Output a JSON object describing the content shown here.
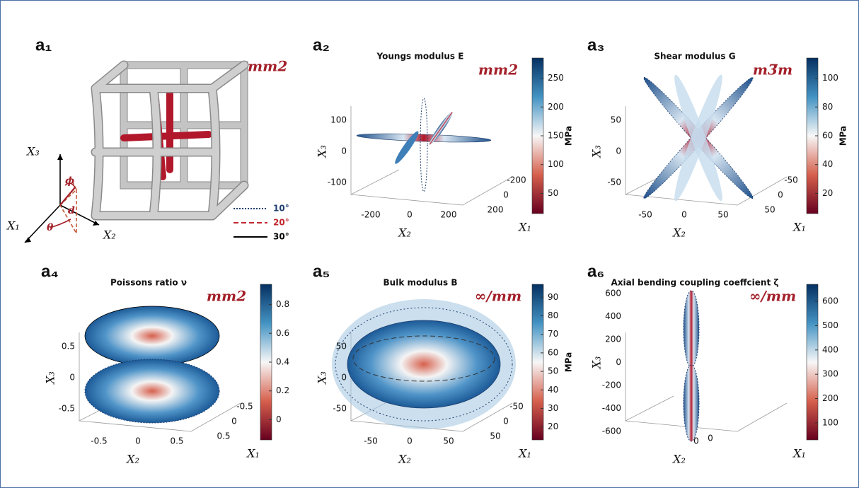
{
  "panels": [
    {
      "label": "a₁",
      "symmetry": "mm2",
      "axes": {
        "x3": "X₃",
        "x1": "X₁",
        "x2": "X₂",
        "phi": "ϕ",
        "d": "d",
        "theta": "θ"
      },
      "legend": [
        {
          "label": "10°",
          "color": "#1f3f6e",
          "style": "dotted"
        },
        {
          "label": "20°",
          "color": "#c0272d",
          "style": "dashed"
        },
        {
          "label": "30°",
          "color": "#000000",
          "style": "solid"
        }
      ]
    },
    {
      "label": "a₂",
      "title": "Youngs modulus E",
      "symmetry": "mm2",
      "colorbar": {
        "ticks": [
          50,
          100,
          150,
          200,
          250
        ],
        "unit": "MPa"
      },
      "x3_ticks": [
        100,
        0,
        -100
      ],
      "x2_ticks": [
        -200,
        0,
        200
      ],
      "x1_ticks": [
        -200,
        0,
        200
      ],
      "x3_label": "X₃",
      "x2_label": "X₂",
      "x1_label": "X₁"
    },
    {
      "label": "a₃",
      "title": "Shear modulus G",
      "symmetry": "m3̅m",
      "colorbar": {
        "ticks": [
          20,
          40,
          60,
          80,
          100
        ],
        "unit": "MPa"
      },
      "x3_ticks": [
        50,
        0,
        -50
      ],
      "x2_ticks": [
        -50,
        0,
        50
      ],
      "x1_ticks": [
        -50,
        0,
        50
      ],
      "x3_label": "X₃",
      "x2_label": "X₂",
      "x1_label": "X₁"
    },
    {
      "label": "a₄",
      "title": "Poissons ratio ν",
      "symmetry": "mm2",
      "colorbar": {
        "ticks": [
          0,
          0.2,
          0.4,
          0.6,
          0.8
        ]
      },
      "x3_ticks": [
        0.5,
        0,
        -0.5
      ],
      "x2_ticks": [
        -0.5,
        0,
        0.5
      ],
      "x1_ticks": [
        -0.5,
        0,
        0.5
      ],
      "x3_label": "X₃",
      "x2_label": "X₂",
      "x1_label": "X₁"
    },
    {
      "label": "a₅",
      "title": "Bulk modulus B",
      "symmetry": "∞/mm",
      "colorbar": {
        "ticks": [
          20,
          30,
          40,
          50,
          60,
          70,
          80,
          90
        ],
        "unit": "MPa"
      },
      "x3_ticks": [
        50,
        0,
        -50
      ],
      "x2_ticks": [
        -50,
        0,
        50
      ],
      "x1_ticks": [
        -50,
        0,
        50
      ],
      "x3_label": "X₃",
      "x2_label": "X₂",
      "x1_label": "X₁"
    },
    {
      "label": "a₆",
      "title": "Axial bending coupling coeffcient ζ",
      "symmetry": "∞/mm",
      "colorbar": {
        "ticks": [
          100,
          200,
          300,
          400,
          500,
          600
        ]
      },
      "x3_ticks": [
        600,
        400,
        200,
        0,
        -200,
        -400,
        -600
      ],
      "x2_ticks": [
        0
      ],
      "x1_ticks": [
        0
      ],
      "x3_label": "X₃",
      "x2_label": "X₂",
      "x1_label": "X₁"
    }
  ]
}
